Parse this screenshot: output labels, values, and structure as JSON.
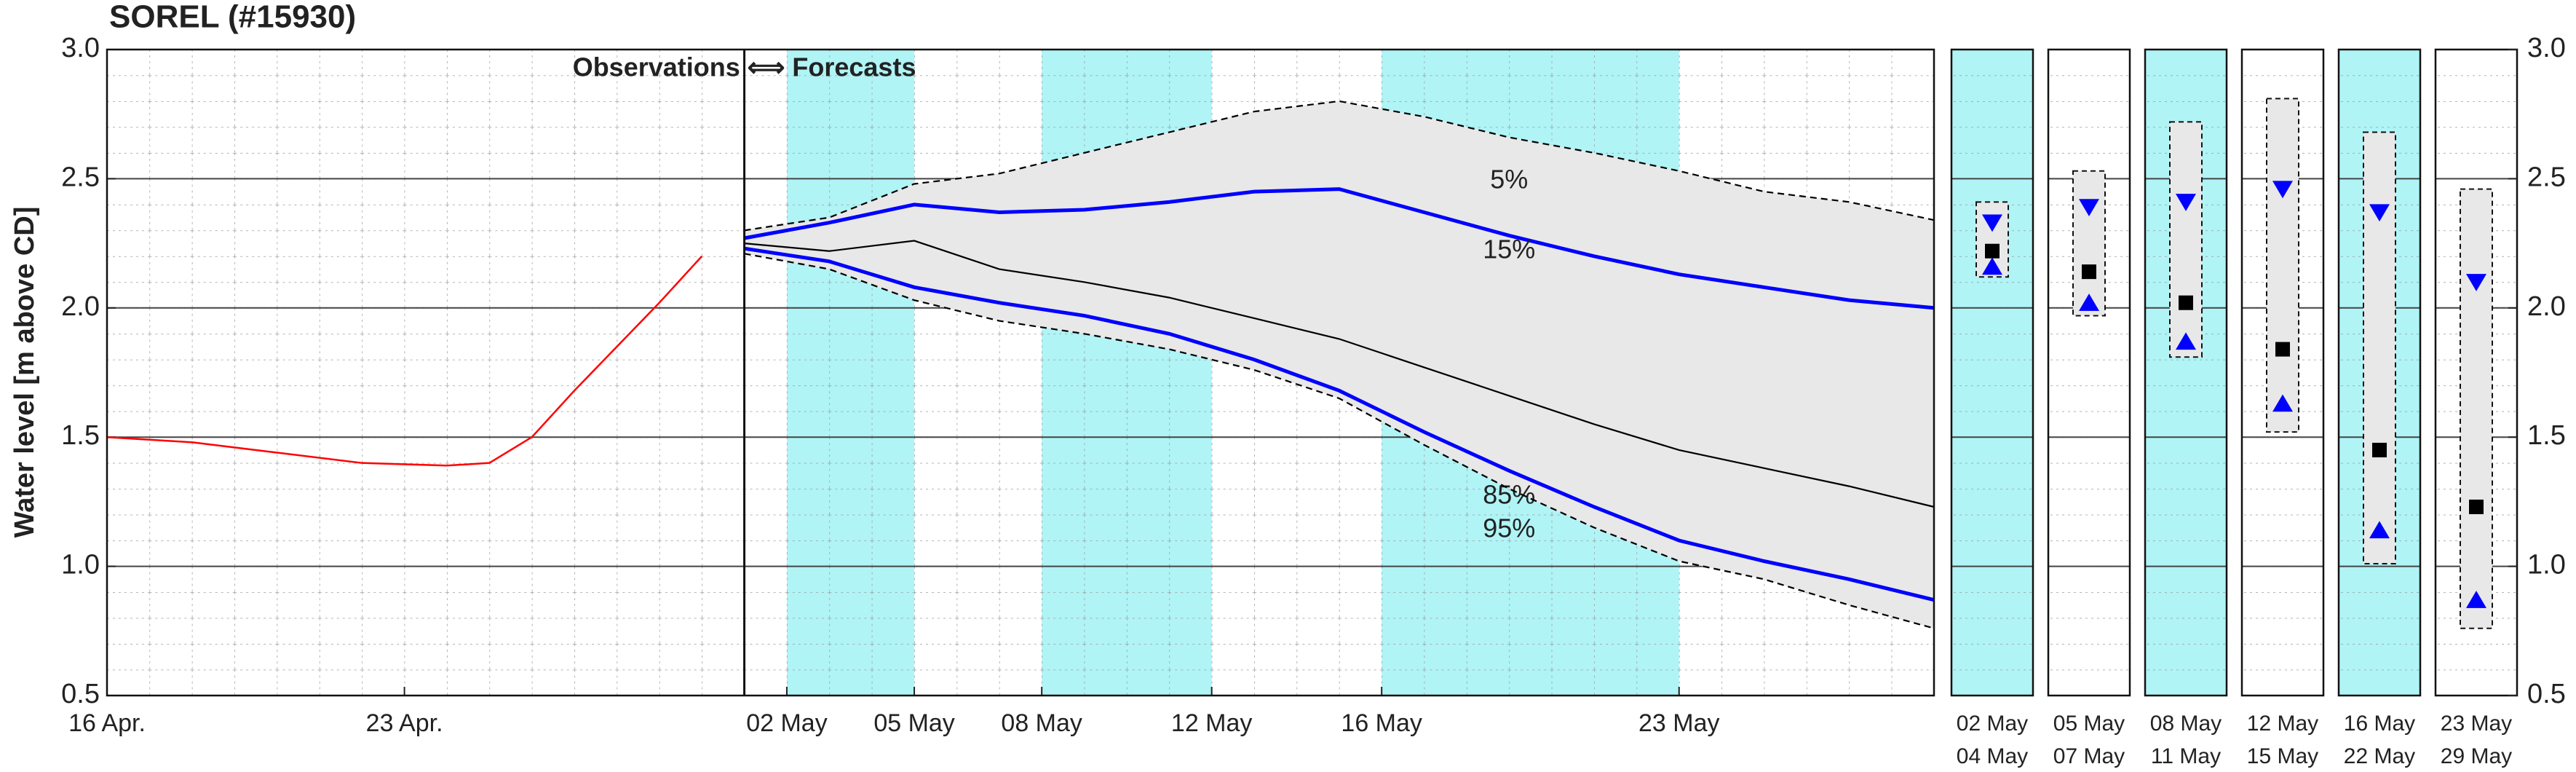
{
  "chart_data": [
    {
      "type": "line",
      "title": "SOREL (#15930)",
      "ylabel": "Water level [m above CD]",
      "xlim": [
        "04-16",
        "05-29"
      ],
      "xticks": [
        {
          "value": "04-16",
          "label": "16 Apr."
        },
        {
          "value": "04-23",
          "label": "23 Apr."
        },
        {
          "value": "05-02",
          "label": "02 May"
        },
        {
          "value": "05-05",
          "label": "05 May"
        },
        {
          "value": "05-08",
          "label": "08 May"
        },
        {
          "value": "05-12",
          "label": "12 May"
        },
        {
          "value": "05-16",
          "label": "16 May"
        },
        {
          "value": "05-23",
          "label": "23 May"
        }
      ],
      "ylim": [
        0.5,
        3.0
      ],
      "yticks": [
        0.5,
        {
          "value": 1,
          "label": "1.0"
        },
        1.5,
        {
          "value": 2,
          "label": "2.0"
        },
        2.5,
        {
          "value": 3,
          "label": "3.0"
        }
      ],
      "grid": true,
      "minor_grid": true,
      "divider": "05-01",
      "divider_label": "Observations ⟺ Forecasts",
      "shaded_periods": [
        [
          "05-02",
          "05-05"
        ],
        [
          "05-08",
          "05-12"
        ],
        [
          "05-16",
          "05-23"
        ]
      ],
      "shade_color": "#b0f4f6",
      "band": {
        "between": [
          1,
          5
        ],
        "color": "#e8e8e8"
      },
      "series": [
        {
          "color": "#ff0000",
          "style": "thin",
          "x": [
            "04-16",
            "04-18",
            "04-20",
            "04-22",
            "04-24",
            "04-25",
            "04-26",
            "04-27",
            "04-28",
            "04-29",
            "04-30"
          ],
          "values": [
            1.5,
            1.48,
            1.44,
            1.4,
            1.39,
            1.4,
            1.5,
            1.68,
            1.85,
            2.02,
            2.2
          ]
        },
        {
          "name": "5%",
          "color": "#000000",
          "style": "dashed",
          "label_x": "05-19",
          "label_y": 2.49,
          "x": [
            "05-01",
            "05-03",
            "05-05",
            "05-07",
            "05-09",
            "05-11",
            "05-13",
            "05-15",
            "05-17",
            "05-19",
            "05-21",
            "05-23",
            "05-25",
            "05-27",
            "05-29"
          ],
          "values": [
            2.3,
            2.35,
            2.48,
            2.52,
            2.6,
            2.68,
            2.76,
            2.8,
            2.74,
            2.66,
            2.6,
            2.53,
            2.45,
            2.41,
            2.34
          ]
        },
        {
          "name": "15%",
          "color": "#0000ff",
          "style": "thick",
          "label_x": "05-19",
          "label_y": 2.22,
          "x": [
            "05-01",
            "05-03",
            "05-05",
            "05-07",
            "05-09",
            "05-11",
            "05-13",
            "05-15",
            "05-17",
            "05-19",
            "05-21",
            "05-23",
            "05-25",
            "05-27",
            "05-29"
          ],
          "values": [
            2.27,
            2.33,
            2.4,
            2.37,
            2.38,
            2.41,
            2.45,
            2.46,
            2.37,
            2.28,
            2.2,
            2.13,
            2.08,
            2.03,
            2.0
          ]
        },
        {
          "color": "#000000",
          "style": "solid",
          "x": [
            "05-01",
            "05-03",
            "05-05",
            "05-07",
            "05-09",
            "05-11",
            "05-13",
            "05-15",
            "05-17",
            "05-19",
            "05-21",
            "05-23",
            "05-25",
            "05-27",
            "05-29"
          ],
          "values": [
            2.25,
            2.22,
            2.26,
            2.15,
            2.1,
            2.04,
            1.96,
            1.88,
            1.77,
            1.66,
            1.55,
            1.45,
            1.38,
            1.31,
            1.23
          ]
        },
        {
          "name": "85%",
          "color": "#0000ff",
          "style": "thick",
          "label_x": "05-19",
          "label_y": 1.27,
          "x": [
            "05-01",
            "05-03",
            "05-05",
            "05-07",
            "05-09",
            "05-11",
            "05-13",
            "05-15",
            "05-17",
            "05-19",
            "05-21",
            "05-23",
            "05-25",
            "05-27",
            "05-29"
          ],
          "values": [
            2.23,
            2.18,
            2.08,
            2.02,
            1.97,
            1.9,
            1.8,
            1.68,
            1.52,
            1.37,
            1.23,
            1.1,
            1.02,
            0.95,
            0.87
          ]
        },
        {
          "name": "95%",
          "color": "#000000",
          "style": "dashed",
          "label_x": "05-19",
          "label_y": 1.14,
          "x": [
            "05-01",
            "05-03",
            "05-05",
            "05-07",
            "05-09",
            "05-11",
            "05-13",
            "05-15",
            "05-17",
            "05-19",
            "05-21",
            "05-23",
            "05-25",
            "05-27",
            "05-29"
          ],
          "values": [
            2.21,
            2.15,
            2.03,
            1.95,
            1.9,
            1.84,
            1.76,
            1.65,
            1.47,
            1.3,
            1.15,
            1.02,
            0.95,
            0.85,
            0.76
          ]
        }
      ]
    },
    {
      "type": "range",
      "categories": [
        [
          "02 May",
          "04 May"
        ],
        [
          "05 May",
          "07 May"
        ],
        [
          "08 May",
          "11 May"
        ],
        [
          "12 May",
          "15 May"
        ],
        [
          "16 May",
          "22 May"
        ],
        [
          "23 May",
          "29 May"
        ]
      ],
      "high": [
        2.41,
        2.53,
        2.72,
        2.81,
        2.68,
        2.46
      ],
      "low": [
        2.12,
        1.97,
        1.81,
        1.52,
        1.01,
        0.76
      ],
      "upper": [
        2.33,
        2.39,
        2.41,
        2.46,
        2.37,
        2.1
      ],
      "median": [
        2.22,
        2.14,
        2.02,
        1.84,
        1.45,
        1.23
      ],
      "lower": [
        2.16,
        2.02,
        1.87,
        1.63,
        1.14,
        0.87
      ],
      "shaded": [
        true,
        false,
        true,
        false,
        true,
        false
      ],
      "shade_color": "#b0f4f6",
      "range_color": "#e8e8e8",
      "marker_color": "#0000ff",
      "median_color": "#000000",
      "ylim": [
        0.5,
        3.0
      ],
      "yticks": [
        0.5,
        {
          "value": 1,
          "label": "1.0"
        },
        1.5,
        {
          "value": 2,
          "label": "2.0"
        },
        2.5,
        {
          "value": 3,
          "label": "3.0"
        }
      ],
      "grid": true
    }
  ]
}
